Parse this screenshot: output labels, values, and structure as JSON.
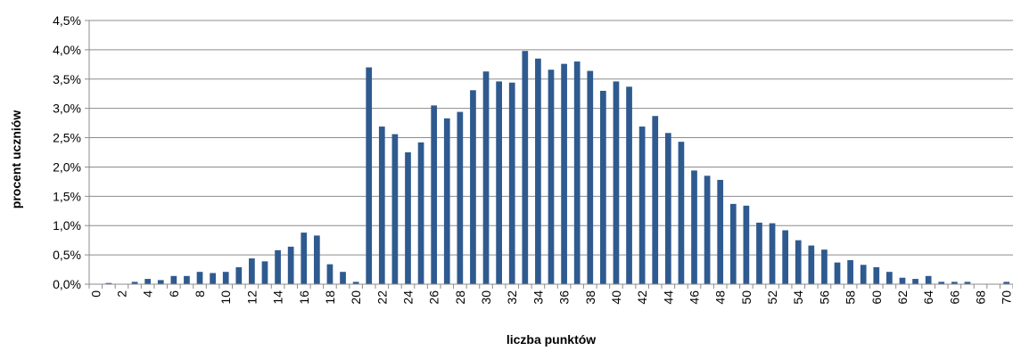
{
  "chart_data": {
    "type": "bar",
    "title": "",
    "xlabel": "liczba punktów",
    "ylabel": "procent uczniów",
    "ylim": [
      0,
      4.5
    ],
    "y_ticks": [
      "0,0%",
      "0,5%",
      "1,0%",
      "1,5%",
      "2,0%",
      "2,5%",
      "3,0%",
      "3,5%",
      "4,0%",
      "4,5%"
    ],
    "x_tick_labels": [
      "0",
      "2",
      "4",
      "6",
      "8",
      "10",
      "12",
      "14",
      "16",
      "18",
      "20",
      "22",
      "24",
      "26",
      "28",
      "30",
      "32",
      "34",
      "36",
      "38",
      "40",
      "42",
      "44",
      "46",
      "48",
      "50",
      "52",
      "54",
      "56",
      "58",
      "60",
      "62",
      "64",
      "66",
      "68",
      "70"
    ],
    "grid": true,
    "bar_color": "#2f5a8f",
    "categories": [
      0,
      1,
      2,
      3,
      4,
      5,
      6,
      7,
      8,
      9,
      10,
      11,
      12,
      13,
      14,
      15,
      16,
      17,
      18,
      19,
      20,
      21,
      22,
      23,
      24,
      25,
      26,
      27,
      28,
      29,
      30,
      31,
      32,
      33,
      34,
      35,
      36,
      37,
      38,
      39,
      40,
      41,
      42,
      43,
      44,
      45,
      46,
      47,
      48,
      49,
      50,
      51,
      52,
      53,
      54,
      55,
      56,
      57,
      58,
      59,
      60,
      61,
      62,
      63,
      64,
      65,
      66,
      67,
      68,
      69,
      70
    ],
    "values": [
      0.0,
      0.02,
      0.0,
      0.04,
      0.09,
      0.07,
      0.14,
      0.14,
      0.21,
      0.19,
      0.21,
      0.29,
      0.44,
      0.39,
      0.58,
      0.64,
      0.88,
      0.83,
      0.34,
      0.21,
      0.04,
      3.7,
      2.69,
      2.56,
      2.25,
      2.42,
      3.05,
      2.83,
      2.94,
      3.31,
      3.63,
      3.46,
      3.44,
      3.98,
      3.85,
      3.66,
      3.76,
      3.8,
      3.64,
      3.3,
      3.46,
      3.37,
      2.69,
      2.87,
      2.58,
      2.43,
      1.94,
      1.85,
      1.78,
      1.37,
      1.34,
      1.05,
      1.04,
      0.92,
      0.75,
      0.66,
      0.59,
      0.37,
      0.41,
      0.33,
      0.29,
      0.21,
      0.11,
      0.09,
      0.14,
      0.04,
      0.04,
      0.04,
      0.0,
      0.0,
      0.04
    ]
  }
}
